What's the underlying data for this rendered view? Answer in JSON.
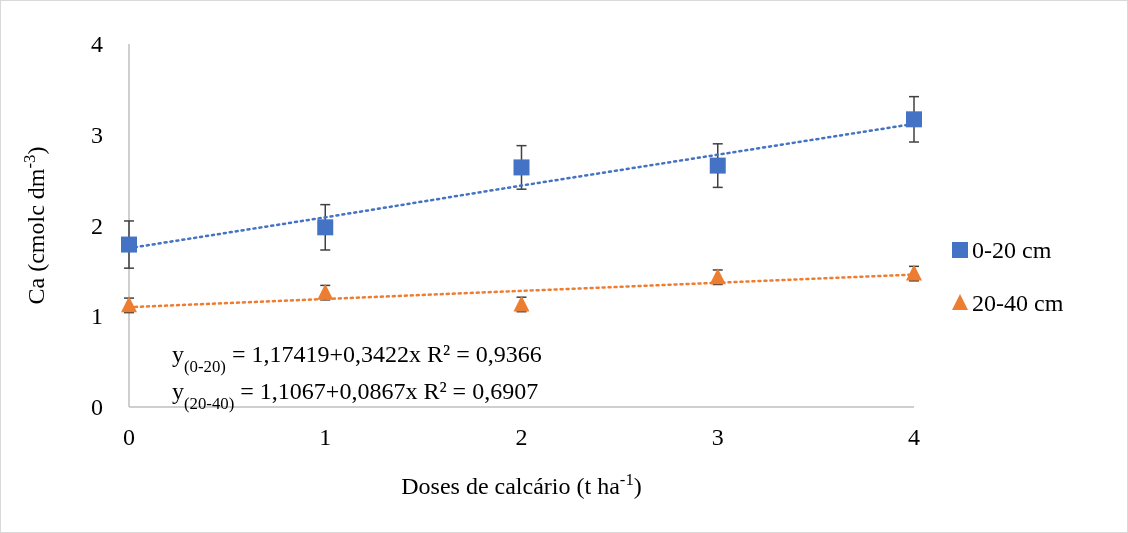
{
  "chart_data": {
    "type": "scatter",
    "xlabel": "Doses de calcário (t ha$^{-1}$)",
    "ylabel": "Ca (cmolc dm$^{-3}$)",
    "x": [
      0,
      1,
      2,
      3,
      4
    ],
    "xlim": [
      0,
      4
    ],
    "xticks": [
      0,
      1,
      2,
      3,
      4
    ],
    "ylim": [
      0,
      4
    ],
    "yticks": [
      0,
      1,
      2,
      3,
      4
    ],
    "grid": false,
    "legend": "right",
    "series": [
      {
        "name": "0-20 cm",
        "color": "#4472c4",
        "marker": "square",
        "values": [
          1.79,
          1.98,
          2.64,
          2.66,
          3.17
        ],
        "errors": [
          0.26,
          0.25,
          0.24,
          0.24,
          0.25
        ]
      },
      {
        "name": "20-40 cm",
        "color": "#ed7d31",
        "marker": "triangle",
        "values": [
          1.12,
          1.26,
          1.13,
          1.43,
          1.47
        ],
        "errors": [
          0.08,
          0.08,
          0.08,
          0.08,
          0.08
        ]
      },
      {
        "type": "line",
        "color": "#4472c4",
        "values": [
          1.75,
          2.09,
          2.44,
          2.78,
          3.12
        ],
        "line_style": "dotted",
        "marker": "none"
      },
      {
        "type": "line",
        "color": "#ed7d31",
        "values": [
          1.1,
          1.19,
          1.28,
          1.37,
          1.46
        ],
        "line_style": "dotted",
        "marker": "none"
      }
    ],
    "annotations": [
      "y$_{(0-20)}$ = 1,17419+0,3422x R² = 0,9366",
      "y$_{(20-40)}$ = 1,1067+0,0867x R² = 0,6907"
    ]
  }
}
